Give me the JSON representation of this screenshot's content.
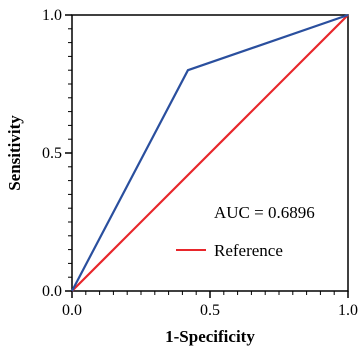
{
  "chart_data": {
    "type": "line",
    "xlabel": "1-Specificity",
    "ylabel": "Sensitivity",
    "xlim": [
      0,
      1
    ],
    "ylim": [
      0,
      1
    ],
    "x_ticks": [
      "0.0",
      "0.5",
      "1.0"
    ],
    "y_ticks": [
      "0.0",
      "0.5",
      "1.0"
    ],
    "grid": false,
    "series": [
      {
        "name": "",
        "color": "#2a4f9e",
        "x": [
          0,
          0.42,
          1
        ],
        "y": [
          0,
          0.8,
          1
        ]
      },
      {
        "name": "Reference",
        "color": "#e8262b",
        "x": [
          0,
          1
        ],
        "y": [
          0,
          1
        ]
      }
    ],
    "annotations": [
      {
        "text": "AUC = 0.6896"
      }
    ],
    "legend": {
      "position": "lower-right",
      "entries": [
        "Reference"
      ]
    }
  }
}
